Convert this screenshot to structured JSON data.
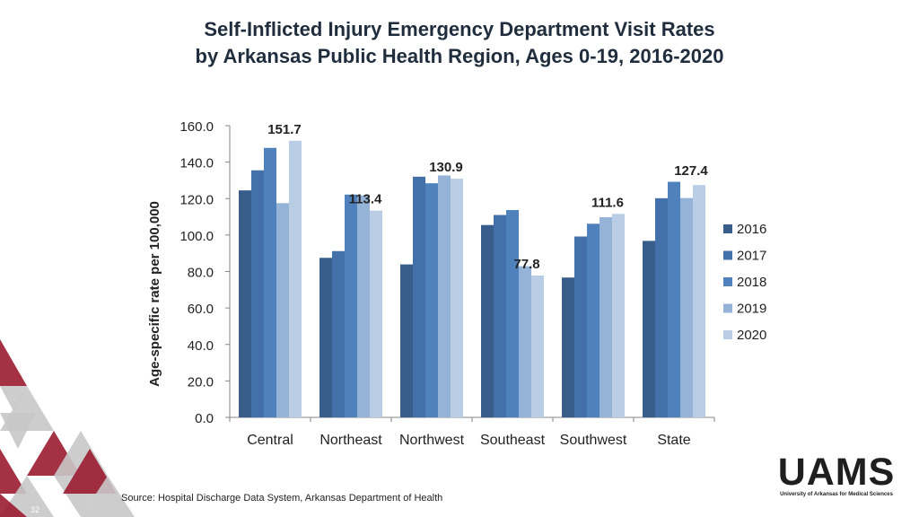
{
  "slide": {
    "title_line1": "Self-Inflicted Injury Emergency Department Visit Rates",
    "title_line2": "by Arkansas Public Health Region, Ages 0-19,  2016-2020",
    "source": "Source: Hospital Discharge Data System, Arkansas Department of Health",
    "page_number": "32",
    "logo_text": "UAMS",
    "logo_subtext": "University of Arkansas for Medical Sciences"
  },
  "colors": {
    "2016": "#385d8a",
    "2017": "#4370a8",
    "2018": "#4f81bd",
    "2019": "#95b3d7",
    "2020": "#b9cde5",
    "accent_red": "#9b1b30",
    "accent_gray": "#c8c8c8"
  },
  "chart_data": {
    "type": "bar",
    "title": "Self-Inflicted Injury Emergency Department Visit Rates by Arkansas Public Health Region, Ages 0-19,  2016-2020",
    "xlabel": "",
    "ylabel": "Age-specific rate per 100,000",
    "ylim": [
      0,
      160
    ],
    "yticks": [
      "0.0",
      "20.0",
      "40.0",
      "60.0",
      "80.0",
      "100.0",
      "120.0",
      "140.0",
      "160.0"
    ],
    "categories": [
      "Central",
      "Northeast",
      "Northwest",
      "Southeast",
      "Southwest",
      "State"
    ],
    "series": [
      {
        "name": "2016",
        "values": [
          124.5,
          87.5,
          83.9,
          105.5,
          76.7,
          96.8
        ]
      },
      {
        "name": "2017",
        "values": [
          135.5,
          91.2,
          132.0,
          111.0,
          99.2,
          120.2
        ]
      },
      {
        "name": "2018",
        "values": [
          147.8,
          122.2,
          128.4,
          113.7,
          106.2,
          129.2
        ]
      },
      {
        "name": "2019",
        "values": [
          117.5,
          121.8,
          132.7,
          82.9,
          109.8,
          120.3
        ]
      },
      {
        "name": "2020",
        "values": [
          151.7,
          113.4,
          130.9,
          77.8,
          111.6,
          127.4
        ]
      }
    ],
    "data_labels": [
      "151.7",
      "113.4",
      "130.9",
      "77.8",
      "111.6",
      "127.4"
    ],
    "legend": [
      "2016",
      "2017",
      "2018",
      "2019",
      "2020"
    ],
    "legend_position": "right",
    "grid": false
  }
}
